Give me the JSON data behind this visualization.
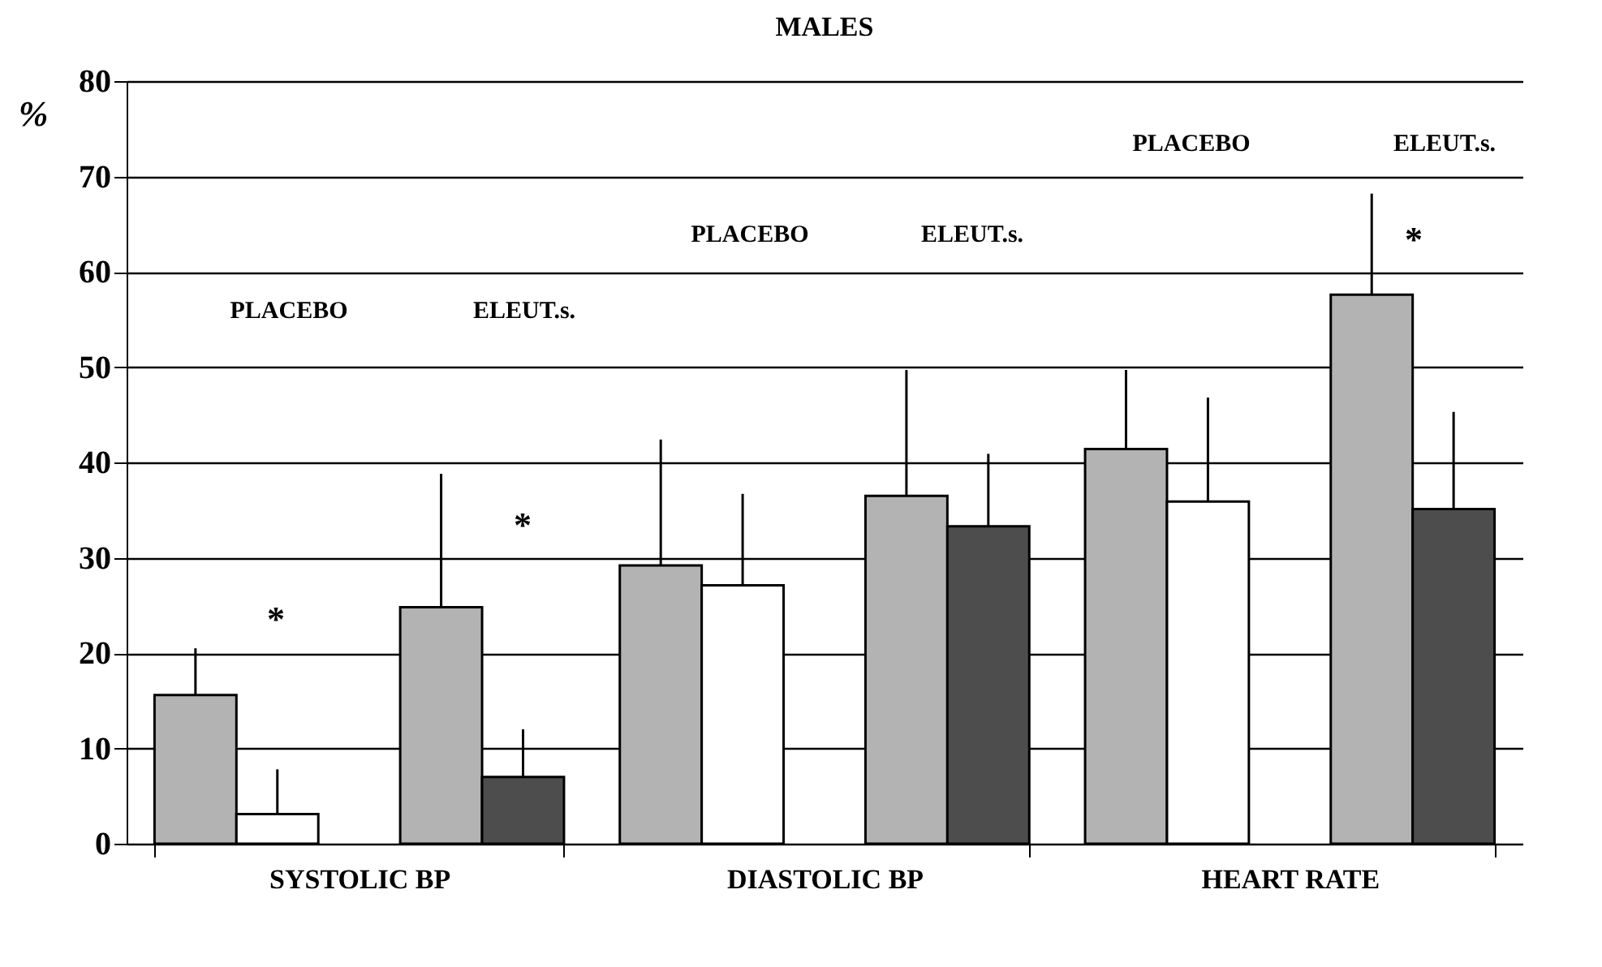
{
  "chart_data": {
    "type": "bar",
    "title": "MALES",
    "ylabel": "%",
    "categories": [
      "SYSTOLIC BP",
      "DIASTOLIC BP",
      "HEART RATE"
    ],
    "series": [
      {
        "color": "#b3b3b3",
        "values": [
          15.6,
          29.2,
          41.4
        ],
        "errors": [
          [
            15.6,
            20.5
          ],
          [
            29.2,
            42.4
          ],
          [
            41.4,
            49.7
          ]
        ]
      },
      {
        "color": "#ffffff",
        "values": [
          3.1,
          27.1,
          35.9
        ],
        "errors": [
          [
            3.1,
            7.8
          ],
          [
            27.1,
            36.7
          ],
          [
            35.9,
            46.8
          ]
        ]
      },
      {
        "color": "#b3b3b3",
        "values": [
          24.8,
          36.5,
          57.6
        ],
        "errors": [
          [
            24.8,
            38.8
          ],
          [
            36.5,
            49.7
          ],
          [
            57.6,
            68.2
          ]
        ]
      },
      {
        "color": "#4d4d4d",
        "values": [
          7.0,
          33.3,
          35.1
        ],
        "errors": [
          [
            7.0,
            12.0
          ],
          [
            33.3,
            40.9
          ],
          [
            35.1,
            45.3
          ]
        ]
      }
    ],
    "annotations": [
      "PLACEBO",
      "*",
      "ELEUT.s.",
      "*",
      "PLACEBO",
      "ELEUT.s.",
      "PLACEBO",
      "ELEUT.s.",
      "*"
    ],
    "ylim": [
      0,
      80
    ],
    "yticks": [
      0,
      10,
      20,
      30,
      40,
      50,
      60,
      70,
      80
    ],
    "grid": "y",
    "legend": false
  }
}
